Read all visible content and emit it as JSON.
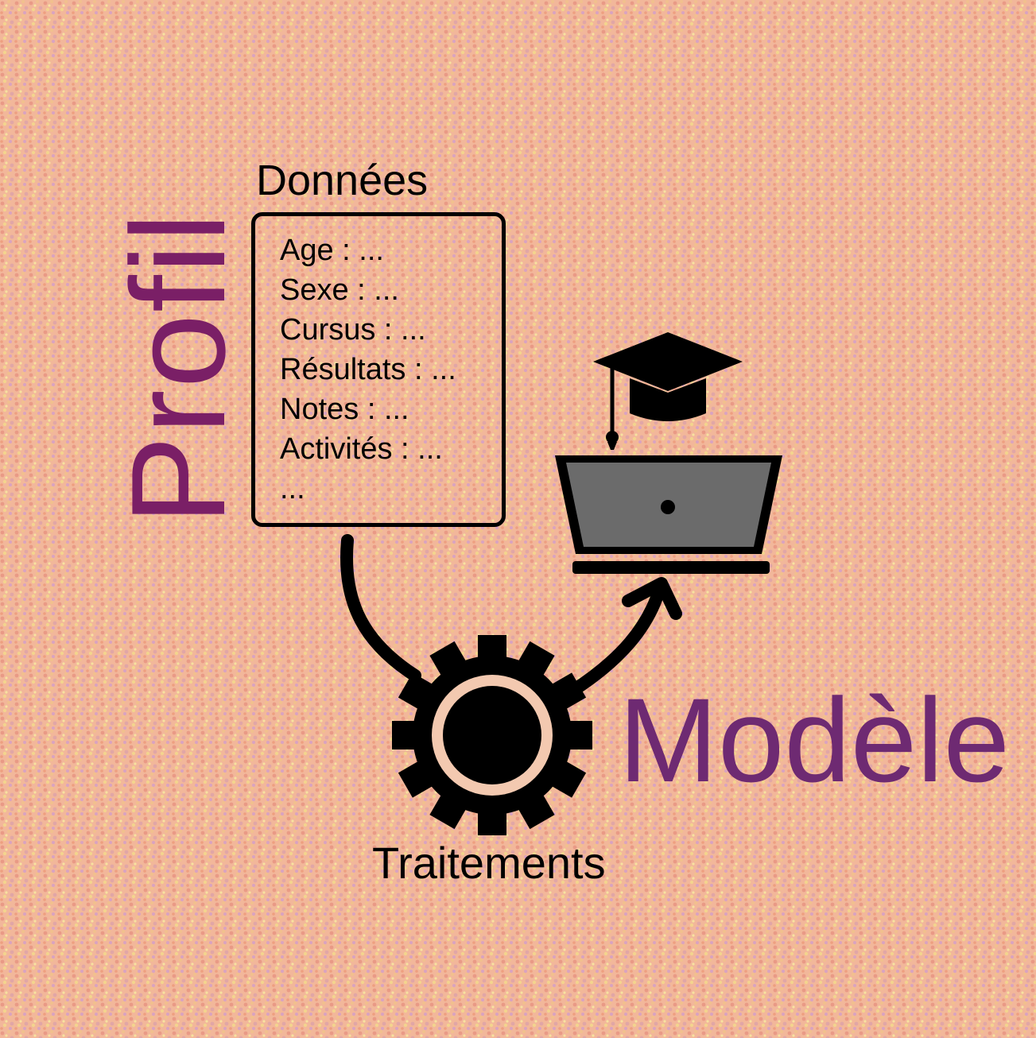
{
  "title": "Données",
  "fields": [
    "Age : ...",
    "Sexe : ...",
    "Cursus : ...",
    "Résultats : ...",
    "Notes : ...",
    "Activités : ...",
    "..."
  ],
  "labels": {
    "profil": "Profil",
    "modele": "Modèle",
    "traitements": "Traitements"
  },
  "icons": {
    "processing": "gear-icon",
    "model": "laptop-icon",
    "education": "graduation-cap-icon"
  },
  "colors": {
    "background": "#f2b79a",
    "profil_text": "#7a1f66",
    "modele_text": "#6e2a72",
    "laptop_screen": "#6b6b6b",
    "ink": "#000000"
  }
}
